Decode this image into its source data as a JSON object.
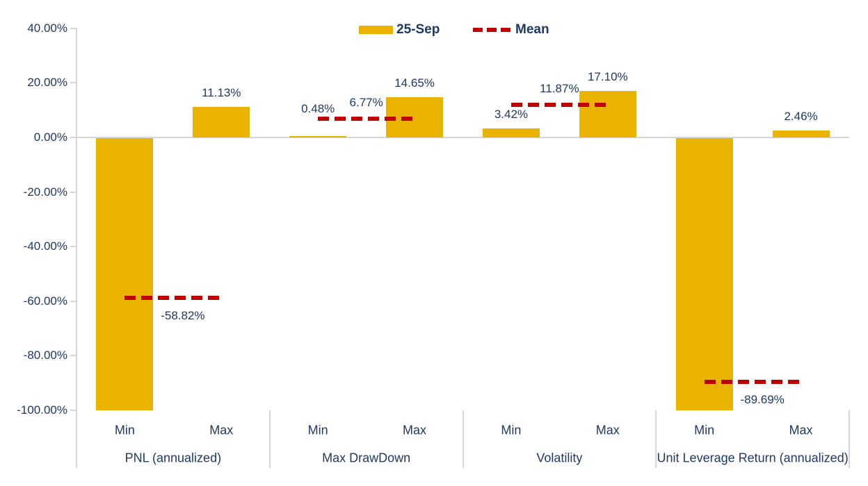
{
  "chart_data": {
    "type": "bar",
    "title": "",
    "legend": [
      {
        "label": "25-Sep",
        "swatch": "bar"
      },
      {
        "label": "Mean",
        "swatch": "dashed-line"
      }
    ],
    "legend_position": "top-center",
    "grid": false,
    "y_axis": {
      "ylim": [
        -100,
        40
      ],
      "tick_step": 20,
      "ticks": [
        {
          "value": 40,
          "label": "40.00%"
        },
        {
          "value": 20,
          "label": "20.00%"
        },
        {
          "value": 0,
          "label": "0.00%"
        },
        {
          "value": -20,
          "label": "-20.00%"
        },
        {
          "value": -40,
          "label": "-40.00%"
        },
        {
          "value": -60,
          "label": "-60.00%"
        },
        {
          "value": -80,
          "label": "-80.00%"
        },
        {
          "value": -100,
          "label": "-100.00%"
        }
      ]
    },
    "series_name": "25-Sep",
    "groups": [
      {
        "label": "PNL (annualized)",
        "bars": [
          {
            "category": "Min",
            "value": -100.0,
            "data_label": ""
          },
          {
            "category": "Max",
            "value": 11.13,
            "data_label": "11.13%"
          }
        ],
        "mean": {
          "value": -58.82,
          "label": "-58.82%"
        }
      },
      {
        "label": "Max DrawDown",
        "bars": [
          {
            "category": "Min",
            "value": 0.48,
            "data_label": "0.48%"
          },
          {
            "category": "Max",
            "value": 14.65,
            "data_label": "14.65%"
          }
        ],
        "mean": {
          "value": 6.77,
          "label": "6.77%"
        }
      },
      {
        "label": "Volatility",
        "bars": [
          {
            "category": "Min",
            "value": 3.42,
            "data_label": "3.42%"
          },
          {
            "category": "Max",
            "value": 17.1,
            "data_label": "17.10%"
          }
        ],
        "mean": {
          "value": 11.87,
          "label": "11.87%"
        }
      },
      {
        "label": "Unit Leverage Return (annualized)",
        "bars": [
          {
            "category": "Min",
            "value": -100.0,
            "data_label": ""
          },
          {
            "category": "Max",
            "value": 2.46,
            "data_label": "2.46%"
          }
        ],
        "mean": {
          "value": -89.69,
          "label": "-89.69%"
        }
      }
    ],
    "colors": {
      "bar": "#EAB300",
      "mean_line": "#C00000",
      "text": "#1F3864",
      "axis_line": "#D6D6D6"
    }
  }
}
